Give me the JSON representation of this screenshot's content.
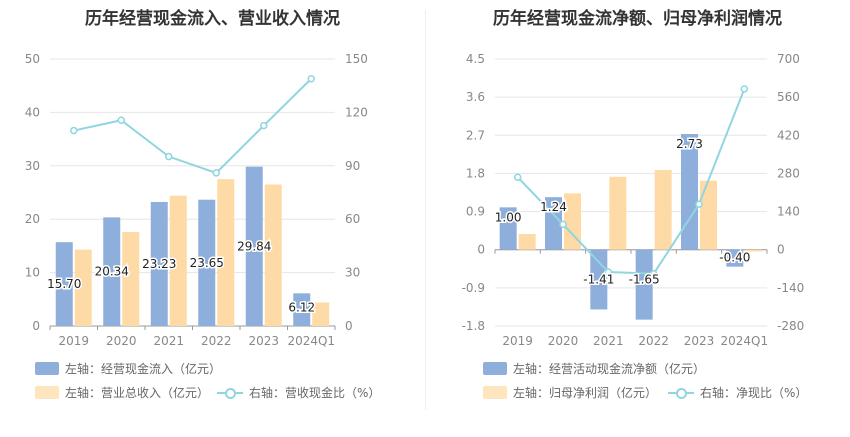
{
  "charts": [
    {
      "title": "历年经营现金流入、营业收入情况",
      "legend": [
        {
          "label": "左轴：经营现金流入（亿元）",
          "color": "#8eafdc",
          "kind": "bar"
        },
        {
          "label": "左轴：营业总收入（亿元）",
          "color": "#fedba6",
          "kind": "bar"
        },
        {
          "label": "右轴：营收现金比（%）",
          "color": "#8fd6e1",
          "kind": "line"
        }
      ]
    },
    {
      "title": "历年经营现金流净额、归母净利润情况",
      "legend": [
        {
          "label": "左轴：经营活动现金流净额（亿元）",
          "color": "#8eafdc",
          "kind": "bar"
        },
        {
          "label": "左轴：归母净利润（亿元）",
          "color": "#fedba6",
          "kind": "bar"
        },
        {
          "label": "右轴：净现比（%）",
          "color": "#8fd6e1",
          "kind": "line"
        }
      ]
    }
  ],
  "chart_data": [
    {
      "type": "bar",
      "title": "历年经营现金流入、营业收入情况",
      "categories": [
        "2019",
        "2020",
        "2021",
        "2022",
        "2023",
        "2024Q1"
      ],
      "ylim_left": [
        0,
        50
      ],
      "yticks_left": [
        "0",
        "10",
        "20",
        "30",
        "40",
        "50"
      ],
      "ylim_right": [
        0,
        150
      ],
      "yticks_right": [
        "0",
        "30",
        "60",
        "90",
        "120",
        "150"
      ],
      "grid": true,
      "legend_position": "bottom",
      "series": [
        {
          "name": "经营现金流入（亿元）",
          "axis": "left",
          "type": "bar",
          "color": "#8eafdc",
          "values": [
            15.7,
            20.34,
            23.23,
            23.65,
            29.84,
            6.12
          ],
          "labels": [
            "15.70",
            "20.34",
            "23.23",
            "23.65",
            "29.84",
            "6.12"
          ]
        },
        {
          "name": "营业总收入（亿元）",
          "axis": "left",
          "type": "bar",
          "color": "#fedba6",
          "values": [
            14.3,
            17.6,
            24.4,
            27.5,
            26.5,
            4.4
          ]
        },
        {
          "name": "营收现金比（%）",
          "axis": "right",
          "type": "line",
          "color": "#8fd6e1",
          "values": [
            109.8,
            115.6,
            95.2,
            86.0,
            112.6,
            138.9
          ]
        }
      ]
    },
    {
      "type": "bar",
      "title": "历年经营现金流净额、归母净利润情况",
      "categories": [
        "2019",
        "2020",
        "2021",
        "2022",
        "2023",
        "2024Q1"
      ],
      "ylim_left": [
        -1.8,
        4.5
      ],
      "yticks_left": [
        "-1.8",
        "-0.9",
        "0",
        "0.9",
        "1.8",
        "2.7",
        "3.6",
        "4.5"
      ],
      "ylim_right": [
        -280,
        700
      ],
      "yticks_right": [
        "-280",
        "-140",
        "0",
        "140",
        "280",
        "420",
        "560",
        "700"
      ],
      "grid": true,
      "legend_position": "bottom",
      "series": [
        {
          "name": "经营活动现金流净额（亿元）",
          "axis": "left",
          "type": "bar",
          "color": "#8eafdc",
          "values": [
            1.0,
            1.24,
            -1.41,
            -1.65,
            2.73,
            -0.4
          ],
          "labels": [
            "1.00",
            "1.24",
            "-1.41",
            "-1.65",
            "2.73",
            "-0.40"
          ]
        },
        {
          "name": "归母净利润（亿元）",
          "axis": "left",
          "type": "bar",
          "color": "#fedba6",
          "values": [
            0.37,
            1.33,
            1.72,
            1.88,
            1.63,
            -0.04
          ]
        },
        {
          "name": "净现比（%）",
          "axis": "right",
          "type": "line",
          "color": "#8fd6e1",
          "values": [
            266,
            93,
            -82,
            -88,
            167,
            590
          ]
        }
      ]
    }
  ]
}
